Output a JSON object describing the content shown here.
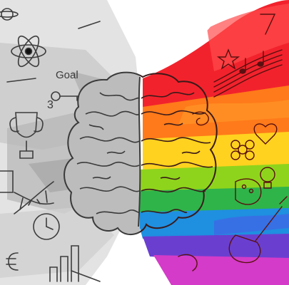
{
  "image": {
    "labels": {
      "goal": "Goal",
      "number_three": "3"
    },
    "rainbow_colors": [
      "#f2222c",
      "#ff7a1a",
      "#ffd21f",
      "#8fd41c",
      "#2fb44a",
      "#1f8fe0",
      "#6a3fd0",
      "#d43bc8"
    ],
    "left_palette": {
      "background": "#d9d9d9",
      "mid": "#bdbdbd",
      "dark": "#8f8f8f",
      "line": "#444444"
    }
  }
}
